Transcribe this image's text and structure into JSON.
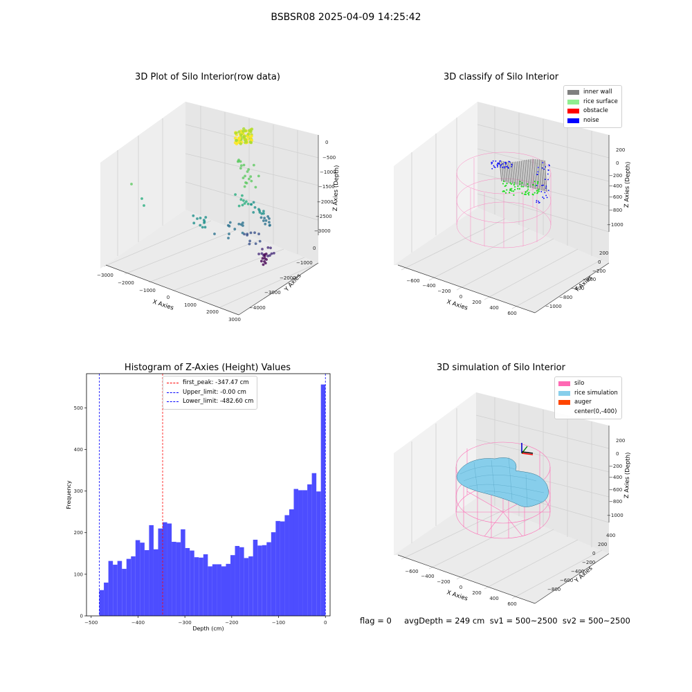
{
  "suptitle": "BSBSR08 2025-04-09 14:25:42",
  "footer": "flag = 0     avgDepth = 249 cm  sv1 = 500~2500  sv2 = 500~2500",
  "chart_data": [
    {
      "type": "scatter",
      "projection": "3d",
      "title": "3D Plot of Silo Interior(row data)",
      "xlabel": "X Axies",
      "ylabel": "Y Axies",
      "zlabel": "Z Axies (Depth)",
      "xticks": [
        "−3000",
        "−2000",
        "−1000",
        "0",
        "1000",
        "2000",
        "3000"
      ],
      "yticks": [
        "0",
        "−1000",
        "−2000",
        "−3000",
        "−4000"
      ],
      "zticks": [
        "0",
        "−500",
        "−1000",
        "−1500",
        "−2000",
        "−2500",
        "−3000"
      ],
      "colormap": "viridis"
    },
    {
      "type": "scatter",
      "projection": "3d",
      "title": "3D classify of Silo Interior",
      "xlabel": "X Axies",
      "ylabel": "Y Axies",
      "zlabel": "Z Axies (Depth)",
      "xticks": [
        "−600",
        "−400",
        "−200",
        "0",
        "200",
        "400",
        "600"
      ],
      "yticks": [
        "200",
        "0",
        "−200",
        "−400",
        "−600",
        "−800",
        "−1000"
      ],
      "zticks": [
        "200",
        "0",
        "−200",
        "−400",
        "−600",
        "−800",
        "−1000"
      ],
      "legend": [
        {
          "label": "inner wall",
          "color": "#808080"
        },
        {
          "label": "rice surface",
          "color": "#90ee90"
        },
        {
          "label": "obstacle",
          "color": "#ff0000"
        },
        {
          "label": "noise",
          "color": "#0000ff"
        }
      ],
      "legend_position": "top-right"
    },
    {
      "type": "bar",
      "title": "Histogram of Z-Axies (Height) Values",
      "xlabel": "Depth (cm)",
      "ylabel": "Frequency",
      "xlim": [
        -510,
        10
      ],
      "ylim": [
        0,
        582
      ],
      "xticks": [
        "−500",
        "−400",
        "−300",
        "−200",
        "−100",
        "0"
      ],
      "xtick_values": [
        -500,
        -400,
        -300,
        -200,
        -100,
        0
      ],
      "yticks": [
        "0",
        "100",
        "200",
        "300",
        "400",
        "500"
      ],
      "ytick_values": [
        0,
        100,
        200,
        300,
        400,
        500
      ],
      "bin_start": -482.6,
      "bin_width": 9.652,
      "values": [
        62,
        80,
        132,
        123,
        132,
        113,
        137,
        143,
        182,
        176,
        158,
        218,
        160,
        210,
        225,
        222,
        178,
        177,
        208,
        163,
        157,
        141,
        140,
        148,
        119,
        124,
        124,
        119,
        125,
        146,
        168,
        165,
        139,
        143,
        183,
        169,
        170,
        177,
        201,
        228,
        227,
        242,
        256,
        305,
        302,
        302,
        316,
        343,
        299,
        556
      ],
      "bar_color": "#4d4dff",
      "vlines": [
        {
          "label": "first_peak: -347.47 cm",
          "x": -347.47,
          "color": "#ff0000"
        },
        {
          "label": "Upper_limit: -0.00 cm",
          "x": 0,
          "color": "#0000ff"
        },
        {
          "label": "Lower_limit: -482.60 cm",
          "x": -482.6,
          "color": "#0000ff"
        }
      ],
      "legend_position": "top-center"
    },
    {
      "type": "surface",
      "projection": "3d",
      "title": "3D simulation of Silo Interior",
      "xlabel": "X Axies",
      "ylabel": "Y Axies",
      "zlabel": "Z Axies (Depth)",
      "xticks": [
        "−600",
        "−400",
        "−200",
        "0",
        "200",
        "400",
        "600"
      ],
      "yticks": [
        "400",
        "200",
        "0",
        "−200",
        "−400",
        "−600",
        "−800"
      ],
      "zticks": [
        "200",
        "0",
        "−200",
        "−400",
        "−600",
        "−800",
        "−1000"
      ],
      "legend": [
        {
          "label": "silo",
          "color": "#ff69b4"
        },
        {
          "label": "rice simulation",
          "color": "#87ceeb"
        },
        {
          "label": "auger",
          "color": "#ff4500"
        },
        {
          "label": "center(0,-400)",
          "color": ""
        }
      ],
      "legend_position": "top-right"
    }
  ]
}
